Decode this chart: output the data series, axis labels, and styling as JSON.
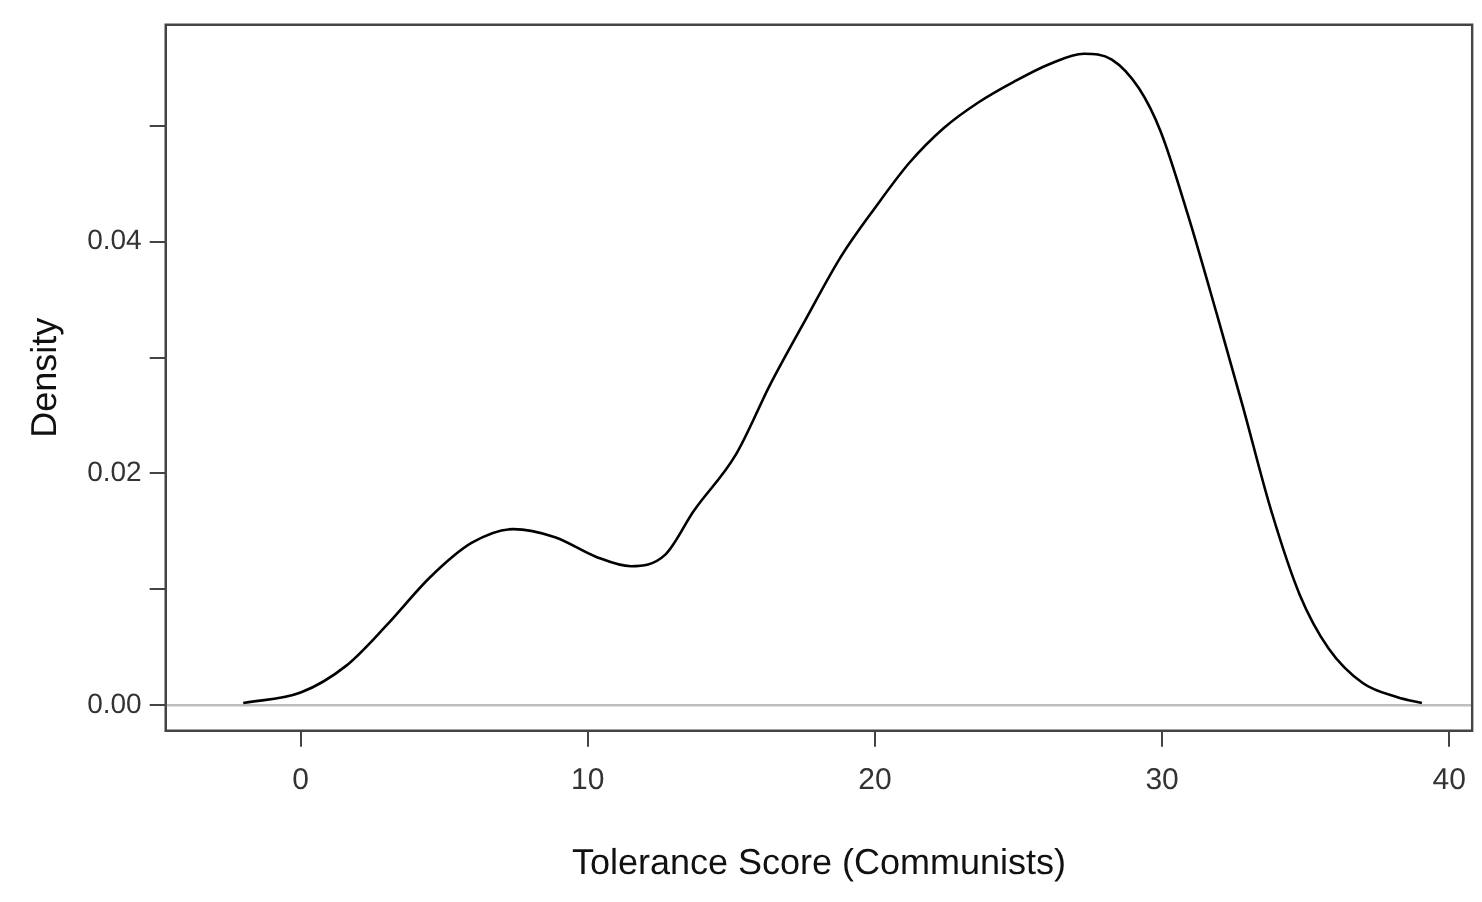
{
  "chart_data": {
    "type": "line",
    "xlabel": "Tolerance Score (Communists)",
    "ylabel": "Density",
    "xlim": [
      -4.7,
      40.8
    ],
    "xticks": [
      0,
      10,
      20,
      30,
      40
    ],
    "ylim": [
      -0.0022,
      0.0587
    ],
    "yticks": [
      {
        "value": 0,
        "label": "0.00"
      },
      {
        "value": 0.01,
        "label": null
      },
      {
        "value": 0.02,
        "label": "0.02"
      },
      {
        "value": 0.03,
        "label": null
      },
      {
        "value": 0.04,
        "label": "0.04"
      },
      {
        "value": 0.05,
        "label": null
      }
    ],
    "grid": false,
    "legend": false,
    "marker": "none",
    "line_style": "solid",
    "ref_lines": [
      {
        "axis": "y",
        "value": 0,
        "label": null,
        "color": "#bebebe"
      }
    ],
    "series": [
      {
        "color": "#000000",
        "x": [
          -2.0,
          0,
          1.58,
          3.03,
          4.49,
          5.95,
          7.4,
          8.86,
          10.3,
          11.5,
          12.7,
          13.7,
          15.15,
          16.36,
          17.57,
          18.79,
          20,
          21.2,
          22.4,
          23.6,
          24.85,
          26.07,
          27.28,
          28.25,
          29.2,
          29.95,
          30.9,
          31.9,
          32.8,
          33.8,
          34.8,
          35.8,
          37.0,
          38.2,
          39.05
        ],
        "values": [
          0.0002,
          0.0011,
          0.0034,
          0.007,
          0.011,
          0.014,
          0.0152,
          0.0145,
          0.0128,
          0.012,
          0.013,
          0.0168,
          0.0216,
          0.0277,
          0.0332,
          0.0386,
          0.0429,
          0.0468,
          0.0498,
          0.052,
          0.0538,
          0.0553,
          0.0562,
          0.0557,
          0.0532,
          0.0495,
          0.0423,
          0.0338,
          0.0259,
          0.0168,
          0.0095,
          0.0049,
          0.0019,
          0.0007,
          0.0002
        ]
      }
    ]
  }
}
